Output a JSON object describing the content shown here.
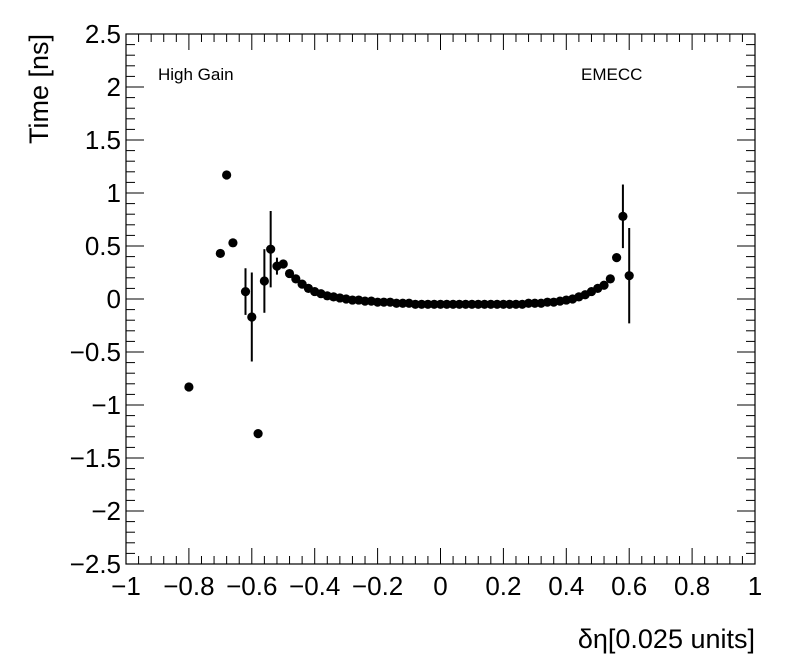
{
  "chart_data": {
    "type": "scatter",
    "title": "",
    "xlabel": "δη[0.025 units]",
    "ylabel": "Time [ns]",
    "xlim": [
      -1,
      1
    ],
    "ylim": [
      -2.5,
      2.5
    ],
    "grid": false,
    "annotations": {
      "left": "High Gain",
      "right": "EMECC"
    },
    "x_ticks": [
      -1,
      -0.8,
      -0.6,
      -0.4,
      -0.2,
      0,
      0.2,
      0.4,
      0.6,
      0.8,
      1
    ],
    "x_tick_labels": [
      "−1",
      "−0.8",
      "−0.6",
      "−0.4",
      "−0.2",
      "0",
      "0.2",
      "0.4",
      "0.6",
      "0.8",
      "1"
    ],
    "y_ticks": [
      -2.5,
      -2,
      -1.5,
      -1,
      -0.5,
      0,
      0.5,
      1,
      1.5,
      2,
      2.5
    ],
    "y_tick_labels": [
      "−2.5",
      "−2",
      "−1.5",
      "−1",
      "−0.5",
      "0",
      "0.5",
      "1",
      "1.5",
      "2",
      "2.5"
    ],
    "points": [
      {
        "x": -0.8,
        "y": -0.83,
        "err": 0
      },
      {
        "x": -0.7,
        "y": 0.43,
        "err": 0
      },
      {
        "x": -0.68,
        "y": 1.17,
        "err": 0
      },
      {
        "x": -0.66,
        "y": 0.53,
        "err": 0
      },
      {
        "x": -0.62,
        "y": 0.07,
        "err": 0.22
      },
      {
        "x": -0.6,
        "y": -0.17,
        "err": 0.42
      },
      {
        "x": -0.58,
        "y": -1.27,
        "err": 0
      },
      {
        "x": -0.56,
        "y": 0.17,
        "err": 0.3
      },
      {
        "x": -0.54,
        "y": 0.47,
        "err": 0.36
      },
      {
        "x": -0.52,
        "y": 0.31,
        "err": 0.08
      },
      {
        "x": -0.5,
        "y": 0.33,
        "err": 0.04
      },
      {
        "x": -0.48,
        "y": 0.24,
        "err": 0
      },
      {
        "x": -0.46,
        "y": 0.19,
        "err": 0
      },
      {
        "x": -0.44,
        "y": 0.14,
        "err": 0
      },
      {
        "x": -0.42,
        "y": 0.1,
        "err": 0
      },
      {
        "x": -0.4,
        "y": 0.07,
        "err": 0
      },
      {
        "x": -0.38,
        "y": 0.05,
        "err": 0
      },
      {
        "x": -0.36,
        "y": 0.03,
        "err": 0
      },
      {
        "x": -0.34,
        "y": 0.02,
        "err": 0
      },
      {
        "x": -0.32,
        "y": 0.01,
        "err": 0
      },
      {
        "x": -0.3,
        "y": 0.0,
        "err": 0
      },
      {
        "x": -0.28,
        "y": -0.01,
        "err": 0
      },
      {
        "x": -0.26,
        "y": -0.01,
        "err": 0
      },
      {
        "x": -0.24,
        "y": -0.02,
        "err": 0
      },
      {
        "x": -0.22,
        "y": -0.02,
        "err": 0
      },
      {
        "x": -0.2,
        "y": -0.03,
        "err": 0
      },
      {
        "x": -0.18,
        "y": -0.03,
        "err": 0
      },
      {
        "x": -0.16,
        "y": -0.03,
        "err": 0
      },
      {
        "x": -0.14,
        "y": -0.04,
        "err": 0
      },
      {
        "x": -0.12,
        "y": -0.04,
        "err": 0
      },
      {
        "x": -0.1,
        "y": -0.04,
        "err": 0
      },
      {
        "x": -0.08,
        "y": -0.05,
        "err": 0
      },
      {
        "x": -0.06,
        "y": -0.05,
        "err": 0
      },
      {
        "x": -0.04,
        "y": -0.05,
        "err": 0
      },
      {
        "x": -0.02,
        "y": -0.05,
        "err": 0
      },
      {
        "x": 0.0,
        "y": -0.05,
        "err": 0
      },
      {
        "x": 0.02,
        "y": -0.05,
        "err": 0
      },
      {
        "x": 0.04,
        "y": -0.05,
        "err": 0
      },
      {
        "x": 0.06,
        "y": -0.05,
        "err": 0
      },
      {
        "x": 0.08,
        "y": -0.05,
        "err": 0
      },
      {
        "x": 0.1,
        "y": -0.05,
        "err": 0
      },
      {
        "x": 0.12,
        "y": -0.05,
        "err": 0
      },
      {
        "x": 0.14,
        "y": -0.05,
        "err": 0
      },
      {
        "x": 0.16,
        "y": -0.05,
        "err": 0
      },
      {
        "x": 0.18,
        "y": -0.05,
        "err": 0
      },
      {
        "x": 0.2,
        "y": -0.05,
        "err": 0
      },
      {
        "x": 0.22,
        "y": -0.05,
        "err": 0
      },
      {
        "x": 0.24,
        "y": -0.05,
        "err": 0
      },
      {
        "x": 0.26,
        "y": -0.05,
        "err": 0
      },
      {
        "x": 0.28,
        "y": -0.04,
        "err": 0
      },
      {
        "x": 0.3,
        "y": -0.04,
        "err": 0
      },
      {
        "x": 0.32,
        "y": -0.04,
        "err": 0
      },
      {
        "x": 0.34,
        "y": -0.03,
        "err": 0
      },
      {
        "x": 0.36,
        "y": -0.03,
        "err": 0
      },
      {
        "x": 0.38,
        "y": -0.02,
        "err": 0
      },
      {
        "x": 0.4,
        "y": -0.01,
        "err": 0
      },
      {
        "x": 0.42,
        "y": 0.0,
        "err": 0
      },
      {
        "x": 0.44,
        "y": 0.02,
        "err": 0
      },
      {
        "x": 0.46,
        "y": 0.04,
        "err": 0
      },
      {
        "x": 0.48,
        "y": 0.07,
        "err": 0
      },
      {
        "x": 0.5,
        "y": 0.1,
        "err": 0
      },
      {
        "x": 0.52,
        "y": 0.13,
        "err": 0
      },
      {
        "x": 0.54,
        "y": 0.19,
        "err": 0
      },
      {
        "x": 0.56,
        "y": 0.39,
        "err": 0
      },
      {
        "x": 0.58,
        "y": 0.78,
        "err": 0.3
      },
      {
        "x": 0.6,
        "y": 0.22,
        "err": 0.45
      }
    ],
    "marker_color": "#000000"
  }
}
